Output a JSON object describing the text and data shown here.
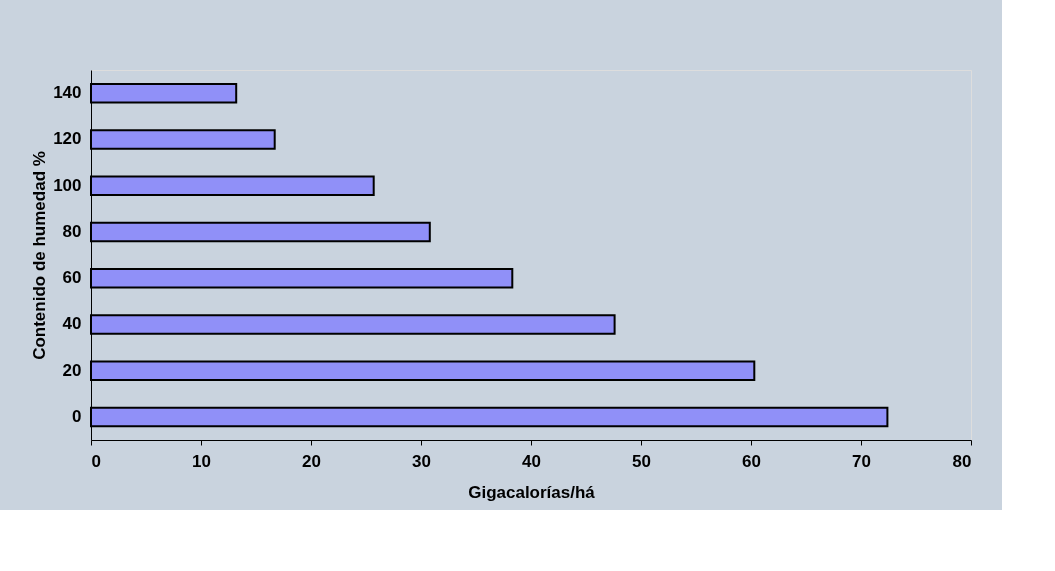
{
  "chart_data": {
    "type": "bar",
    "orientation": "horizontal",
    "xlabel": "Gigacalorías/há",
    "ylabel": "Contenido de humedad %",
    "categories": [
      "140",
      "120",
      "100",
      "80",
      "60",
      "40",
      "20",
      "0"
    ],
    "series": [
      {
        "color": "#9090f8",
        "values": [
          13.2,
          16.7,
          25.7,
          30.8,
          38.3,
          47.6,
          60.3,
          72.4
        ]
      }
    ],
    "xlim": [
      0,
      80
    ],
    "xticks": [
      0,
      10,
      20,
      30,
      40,
      50,
      60,
      70,
      80
    ],
    "grid": false,
    "legend": false
  }
}
